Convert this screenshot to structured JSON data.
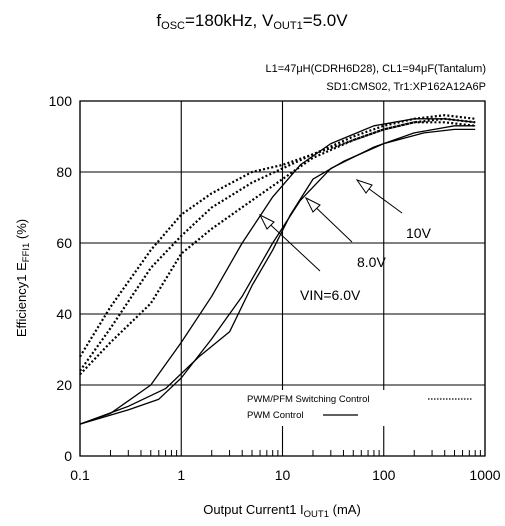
{
  "chart_data": {
    "type": "line",
    "title": {
      "main": "f",
      "main_sub": "OSC",
      "main_tail": "=180kHz, V",
      "main_sub2": "OUT1",
      "main_end": "=5.0V"
    },
    "notes": [
      "L1=47μH(CDRH6D28), CL1=94μF(Tantalum)",
      "SD1:CMS02, Tr1:XP162A12A6P"
    ],
    "xlabel": {
      "pre": "Output Current1  I",
      "sub": "OUT1",
      "post": " (mA)"
    },
    "ylabel": {
      "pre": "Efficiency1 E",
      "sub": "FFI1",
      "post": " (%)"
    },
    "x_scale": "log",
    "xlim": [
      0.1,
      1000
    ],
    "ylim": [
      0,
      100
    ],
    "x_ticks": [
      0.1,
      1,
      10,
      100,
      1000
    ],
    "x_tick_labels": [
      "0.1",
      "1",
      "10",
      "100",
      "1000"
    ],
    "y_ticks": [
      0,
      20,
      40,
      60,
      80,
      100
    ],
    "y_tick_labels": [
      "0",
      "20",
      "40",
      "60",
      "80",
      "100"
    ],
    "grid": true,
    "legend": {
      "placement": "bottom-right",
      "entries": [
        {
          "label": "PWM/PFM Switching Control",
          "style": "dotted"
        },
        {
          "label": "PWM  Control",
          "style": "solid"
        }
      ]
    },
    "annotations": [
      "10V",
      "8.0V",
      "VIN=6.0V"
    ],
    "series": [
      {
        "name": "",
        "group": "PWM Control",
        "vin": "6.0V",
        "style": "solid",
        "x": [
          0.1,
          0.3,
          0.7,
          1.5,
          3,
          5,
          8,
          12,
          20,
          40,
          100,
          250,
          500,
          800
        ],
        "y": [
          9,
          14,
          19,
          28,
          35,
          48,
          58,
          68,
          78,
          83,
          88,
          91,
          92,
          92
        ]
      },
      {
        "name": "",
        "group": "PWM Control",
        "vin": "8.0V",
        "style": "solid",
        "x": [
          0.1,
          0.3,
          0.6,
          1,
          2,
          4,
          8,
          15,
          30,
          80,
          200,
          500,
          800
        ],
        "y": [
          9,
          13,
          16,
          22,
          33,
          45,
          60,
          72,
          81,
          87,
          91,
          93,
          93
        ]
      },
      {
        "name": "",
        "group": "PWM Control",
        "vin": "10V",
        "style": "solid",
        "x": [
          0.1,
          0.2,
          0.5,
          1,
          2,
          4,
          8,
          15,
          30,
          80,
          200,
          400,
          800
        ],
        "y": [
          9,
          12,
          20,
          32,
          45,
          60,
          73,
          82,
          88,
          93,
          95,
          95,
          94
        ]
      },
      {
        "name": "",
        "group": "PWM/PFM Switching Control",
        "vin": "10V",
        "style": "dotted",
        "x": [
          0.1,
          0.2,
          0.5,
          1,
          2,
          5,
          10,
          20,
          50,
          100,
          200,
          400,
          800
        ],
        "y": [
          23,
          32,
          43,
          57,
          64,
          72,
          78,
          84,
          89,
          92,
          94,
          94,
          93
        ]
      },
      {
        "name": "",
        "group": "PWM/PFM Switching Control",
        "vin": "8.0V",
        "style": "dotted",
        "x": [
          0.1,
          0.2,
          0.5,
          1,
          2,
          5,
          10,
          20,
          50,
          100,
          200,
          400,
          800
        ],
        "y": [
          24,
          36,
          53,
          62,
          70,
          77,
          81,
          85,
          89,
          92,
          94,
          95,
          94
        ]
      },
      {
        "name": "",
        "group": "PWM/PFM Switching Control",
        "vin": "6.0V",
        "style": "dotted",
        "x": [
          0.1,
          0.2,
          0.5,
          1,
          2,
          5,
          10,
          20,
          50,
          100,
          200,
          400,
          800
        ],
        "y": [
          28,
          42,
          58,
          68,
          74,
          80,
          82,
          85,
          90,
          93,
          95,
          96,
          95
        ]
      }
    ]
  }
}
